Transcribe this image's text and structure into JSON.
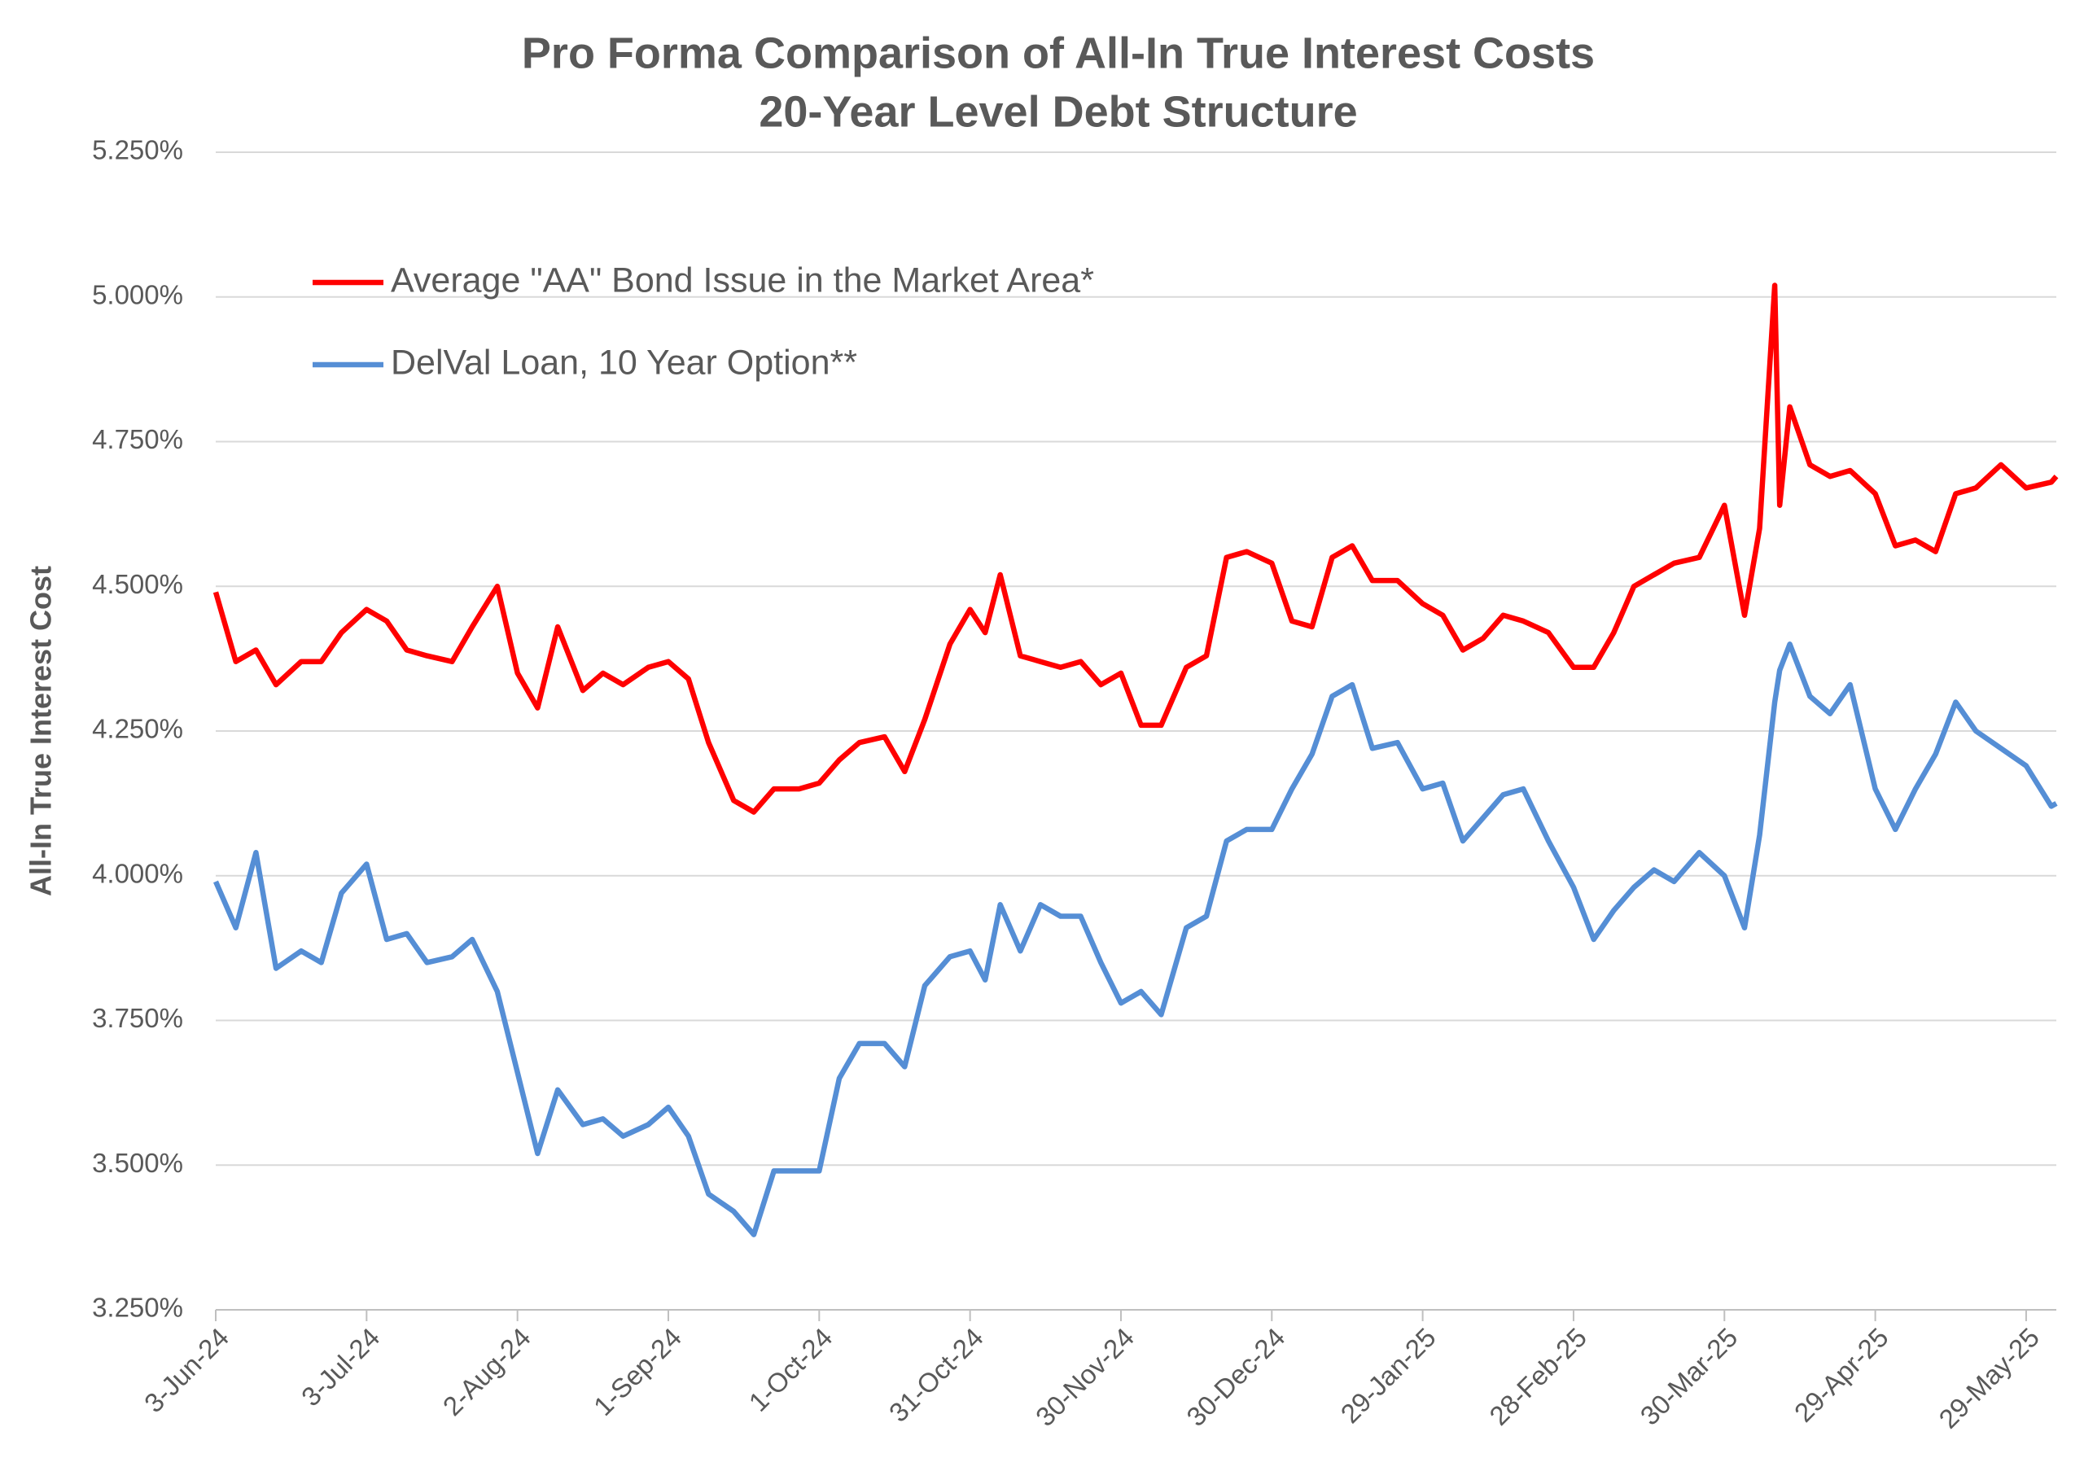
{
  "chart_data": {
    "type": "line",
    "title": "Pro Forma Comparison of All-In True Interest Costs",
    "subtitle": "20-Year Level Debt Structure",
    "y_label": "All-In True Interest Cost",
    "legend": "upper left",
    "grid": true,
    "ylim": [
      3.25,
      5.25
    ],
    "yticks": [
      {
        "value": 3.25,
        "label": "3.250%"
      },
      {
        "value": 3.5,
        "label": "3.500%"
      },
      {
        "value": 3.75,
        "label": "3.750%"
      },
      {
        "value": 4.0,
        "label": "4.000%"
      },
      {
        "value": 4.25,
        "label": "4.250%"
      },
      {
        "value": 4.5,
        "label": "4.500%"
      },
      {
        "value": 4.75,
        "label": "4.750%"
      },
      {
        "value": 5.0,
        "label": "5.000%"
      },
      {
        "value": 5.25,
        "label": "5.250%"
      }
    ],
    "xlim": [
      "2024-06-03",
      "2025-06-04"
    ],
    "xticks": [
      {
        "value": "2024-06-03",
        "label": "3-Jun-24"
      },
      {
        "value": "2024-07-03",
        "label": "3-Jul-24"
      },
      {
        "value": "2024-08-02",
        "label": "2-Aug-24"
      },
      {
        "value": "2024-09-01",
        "label": "1-Sep-24"
      },
      {
        "value": "2024-10-01",
        "label": "1-Oct-24"
      },
      {
        "value": "2024-10-31",
        "label": "31-Oct-24"
      },
      {
        "value": "2024-11-30",
        "label": "30-Nov-24"
      },
      {
        "value": "2024-12-30",
        "label": "30-Dec-24"
      },
      {
        "value": "2025-01-29",
        "label": "29-Jan-25"
      },
      {
        "value": "2025-02-28",
        "label": "28-Feb-25"
      },
      {
        "value": "2025-03-30",
        "label": "30-Mar-25"
      },
      {
        "value": "2025-04-29",
        "label": "29-Apr-25"
      },
      {
        "value": "2025-05-29",
        "label": "29-May-25"
      }
    ],
    "x": [
      "2024-06-03",
      "2024-06-07",
      "2024-06-11",
      "2024-06-15",
      "2024-06-20",
      "2024-06-24",
      "2024-06-28",
      "2024-07-03",
      "2024-07-07",
      "2024-07-11",
      "2024-07-15",
      "2024-07-20",
      "2024-07-24",
      "2024-07-29",
      "2024-08-02",
      "2024-08-06",
      "2024-08-10",
      "2024-08-15",
      "2024-08-19",
      "2024-08-23",
      "2024-08-28",
      "2024-09-01",
      "2024-09-05",
      "2024-09-09",
      "2024-09-14",
      "2024-09-18",
      "2024-09-22",
      "2024-09-27",
      "2024-10-01",
      "2024-10-05",
      "2024-10-09",
      "2024-10-14",
      "2024-10-18",
      "2024-10-22",
      "2024-10-27",
      "2024-10-31",
      "2024-11-03",
      "2024-11-06",
      "2024-11-10",
      "2024-11-14",
      "2024-11-18",
      "2024-11-22",
      "2024-11-26",
      "2024-11-30",
      "2024-12-04",
      "2024-12-08",
      "2024-12-13",
      "2024-12-17",
      "2024-12-21",
      "2024-12-25",
      "2024-12-30",
      "2025-01-03",
      "2025-01-07",
      "2025-01-11",
      "2025-01-15",
      "2025-01-19",
      "2025-01-24",
      "2025-01-29",
      "2025-02-02",
      "2025-02-06",
      "2025-02-10",
      "2025-02-14",
      "2025-02-18",
      "2025-02-23",
      "2025-02-28",
      "2025-03-04",
      "2025-03-08",
      "2025-03-12",
      "2025-03-16",
      "2025-03-20",
      "2025-03-25",
      "2025-03-30",
      "2025-04-03",
      "2025-04-06",
      "2025-04-09",
      "2025-04-10",
      "2025-04-12",
      "2025-04-16",
      "2025-04-20",
      "2025-04-24",
      "2025-04-29",
      "2025-05-03",
      "2025-05-07",
      "2025-05-11",
      "2025-05-15",
      "2025-05-19",
      "2025-05-24",
      "2025-05-29",
      "2025-06-03",
      "2025-06-04"
    ],
    "series": [
      {
        "name": "Average \"AA\" Bond Issue in the Market Area*",
        "color": "#ff0000",
        "values": [
          4.49,
          4.37,
          4.39,
          4.33,
          4.37,
          4.37,
          4.42,
          4.46,
          4.44,
          4.39,
          4.38,
          4.37,
          4.43,
          4.5,
          4.35,
          4.29,
          4.43,
          4.32,
          4.35,
          4.33,
          4.36,
          4.37,
          4.34,
          4.23,
          4.13,
          4.11,
          4.15,
          4.15,
          4.16,
          4.2,
          4.23,
          4.24,
          4.18,
          4.27,
          4.4,
          4.46,
          4.42,
          4.52,
          4.38,
          4.37,
          4.36,
          4.37,
          4.33,
          4.35,
          4.26,
          4.26,
          4.36,
          4.38,
          4.55,
          4.56,
          4.54,
          4.44,
          4.43,
          4.55,
          4.57,
          4.51,
          4.51,
          4.47,
          4.45,
          4.39,
          4.41,
          4.45,
          4.44,
          4.42,
          4.36,
          4.36,
          4.42,
          4.5,
          4.52,
          4.54,
          4.55,
          4.64,
          4.45,
          4.6,
          5.02,
          4.64,
          4.81,
          4.71,
          4.69,
          4.7,
          4.66,
          4.57,
          4.58,
          4.56,
          4.66,
          4.67,
          4.71,
          4.67,
          4.68,
          4.69
        ]
      },
      {
        "name": "DelVal Loan, 10 Year Option**",
        "color": "#558ed5",
        "values": [
          3.99,
          3.91,
          4.04,
          3.84,
          3.87,
          3.85,
          3.97,
          4.02,
          3.89,
          3.9,
          3.85,
          3.86,
          3.89,
          3.8,
          3.66,
          3.52,
          3.63,
          3.57,
          3.58,
          3.55,
          3.57,
          3.6,
          3.55,
          3.45,
          3.42,
          3.38,
          3.49,
          3.49,
          3.49,
          3.65,
          3.71,
          3.71,
          3.67,
          3.81,
          3.86,
          3.87,
          3.82,
          3.95,
          3.87,
          3.95,
          3.93,
          3.93,
          3.85,
          3.78,
          3.8,
          3.76,
          3.91,
          3.93,
          4.06,
          4.08,
          4.08,
          4.15,
          4.21,
          4.31,
          4.33,
          4.22,
          4.23,
          4.15,
          4.16,
          4.06,
          4.1,
          4.14,
          4.15,
          4.06,
          3.98,
          3.89,
          3.94,
          3.98,
          4.01,
          3.99,
          4.04,
          4.0,
          3.91,
          4.07,
          4.3,
          4.355,
          4.4,
          4.31,
          4.28,
          4.33,
          4.15,
          4.08,
          4.15,
          4.21,
          4.3,
          4.25,
          4.22,
          4.19,
          4.12,
          4.125
        ]
      }
    ]
  }
}
